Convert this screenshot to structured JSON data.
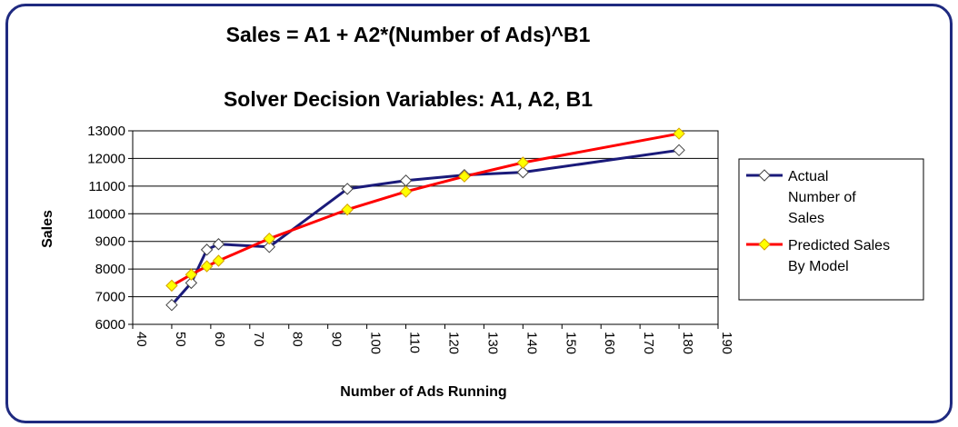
{
  "chart_data": {
    "type": "line",
    "title": "Sales = A1 + A2*(Number of Ads)^B1",
    "subtitle": "Solver Decision Variables: A1, A2, B1",
    "xlabel": "Number of Ads Running",
    "ylabel": "Sales",
    "xlim": [
      40,
      190
    ],
    "ylim": [
      6000,
      13000
    ],
    "x_ticks": [
      40,
      50,
      60,
      70,
      80,
      90,
      100,
      110,
      120,
      130,
      140,
      150,
      160,
      170,
      180,
      190
    ],
    "y_ticks": [
      6000,
      7000,
      8000,
      9000,
      10000,
      11000,
      12000,
      13000
    ],
    "grid": "horizontal",
    "legend_position": "right",
    "series": [
      {
        "name": "Actual Number of Sales",
        "name_lines": [
          "Actual",
          "Number of",
          "Sales"
        ],
        "color": "#1a1a7a",
        "marker": "diamond-white",
        "x": [
          50,
          55,
          59,
          62,
          75,
          95,
          110,
          125,
          140,
          180
        ],
        "y": [
          6700,
          7500,
          8700,
          8900,
          8800,
          10900,
          11200,
          11400,
          11500,
          12300
        ]
      },
      {
        "name": "Predicted Sales By Model",
        "name_lines": [
          "Predicted Sales",
          "By Model"
        ],
        "color": "#ff0000",
        "marker": "diamond-yellow",
        "x": [
          50,
          55,
          59,
          62,
          75,
          95,
          110,
          125,
          140,
          180
        ],
        "y": [
          7400,
          7800,
          8100,
          8300,
          9100,
          10150,
          10800,
          11350,
          11850,
          12900
        ]
      }
    ]
  }
}
